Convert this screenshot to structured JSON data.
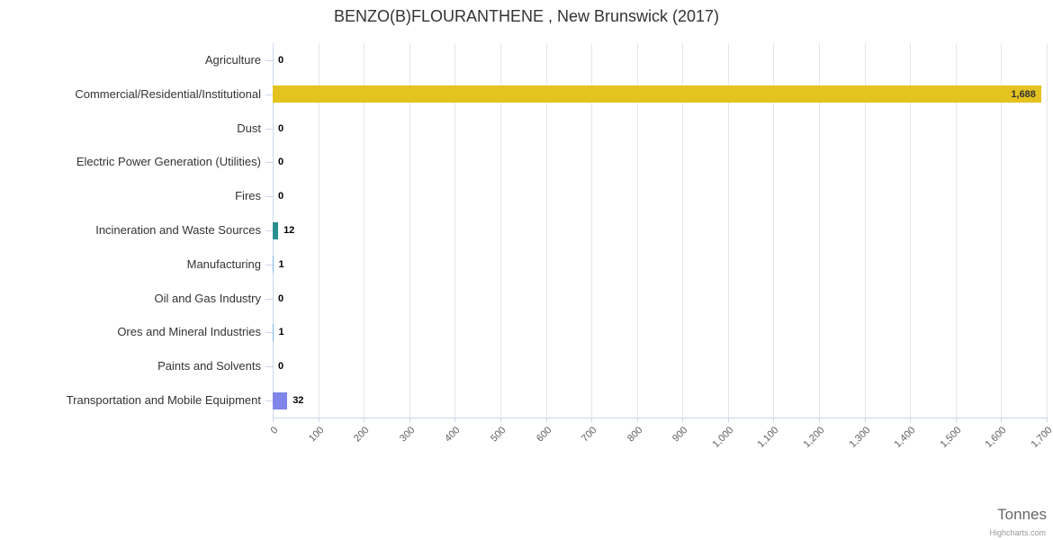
{
  "chart": {
    "title": "BENZO(B)FLOURANTHENE , New Brunswick (2017)",
    "axis_title": "Tonnes",
    "credits": "Highcharts.com"
  },
  "chart_data": {
    "type": "bar",
    "orientation": "horizontal",
    "title": "BENZO(B)FLOURANTHENE , New Brunswick (2017)",
    "categories": [
      "Agriculture",
      "Commercial/Residential/Institutional",
      "Dust",
      "Electric Power Generation (Utilities)",
      "Fires",
      "Incineration and Waste Sources",
      "Manufacturing",
      "Oil and Gas Industry",
      "Ores and Mineral Industries",
      "Paints and Solvents",
      "Transportation and Mobile Equipment"
    ],
    "values": [
      0,
      1688,
      0,
      0,
      0,
      12,
      1,
      0,
      1,
      0,
      32
    ],
    "value_labels": [
      "0",
      "1,688",
      "0",
      "0",
      "0",
      "12",
      "1",
      "0",
      "1",
      "0",
      "32"
    ],
    "bar_colors": {
      "Commercial/Residential/Institutional": "#e4c220",
      "Incineration and Waste Sources": "#2b908f",
      "Manufacturing": "#7cb5ec",
      "Ores and Mineral Industries": "#7cb5ec",
      "Transportation and Mobile Equipment": "#8085e9"
    },
    "xlabel": "Tonnes",
    "ylabel": "",
    "xlim": [
      0,
      1700
    ],
    "tick_interval": 100,
    "tick_labels": [
      "0",
      "100",
      "200",
      "300",
      "400",
      "500",
      "600",
      "700",
      "800",
      "900",
      "1,000",
      "1,100",
      "1,200",
      "1,300",
      "1,400",
      "1,500",
      "1,600",
      "1,700"
    ],
    "grid": true,
    "legend": "none"
  }
}
